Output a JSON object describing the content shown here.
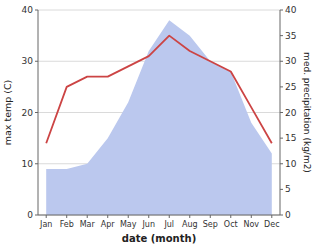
{
  "chart_data": {
    "type": "line",
    "categories": [
      "Jan",
      "Feb",
      "Mar",
      "Apr",
      "May",
      "Jun",
      "Jul",
      "Aug",
      "Sep",
      "Oct",
      "Nov",
      "Dec"
    ],
    "series": [
      {
        "type": "area",
        "axis": "y2",
        "color": "#bbc8ee",
        "values": [
          9,
          9,
          10,
          15,
          22,
          32,
          38,
          35,
          30,
          28,
          18,
          12
        ]
      },
      {
        "type": "line",
        "color": "#cc4444",
        "values": [
          14,
          25,
          27,
          27,
          29,
          31,
          35,
          32,
          30,
          28,
          21,
          14
        ]
      }
    ],
    "xlabel": "date (month)",
    "ylabel": "max temp (C)",
    "y2label": "med. precipitation (kg/m2)",
    "ylim": [
      0,
      40
    ],
    "yticks": [
      0,
      10,
      20,
      30,
      40
    ],
    "y2lim": [
      0,
      40
    ],
    "y2ticks": [
      0,
      5,
      10,
      15,
      20,
      25,
      30,
      35,
      40
    ],
    "grid": true
  }
}
